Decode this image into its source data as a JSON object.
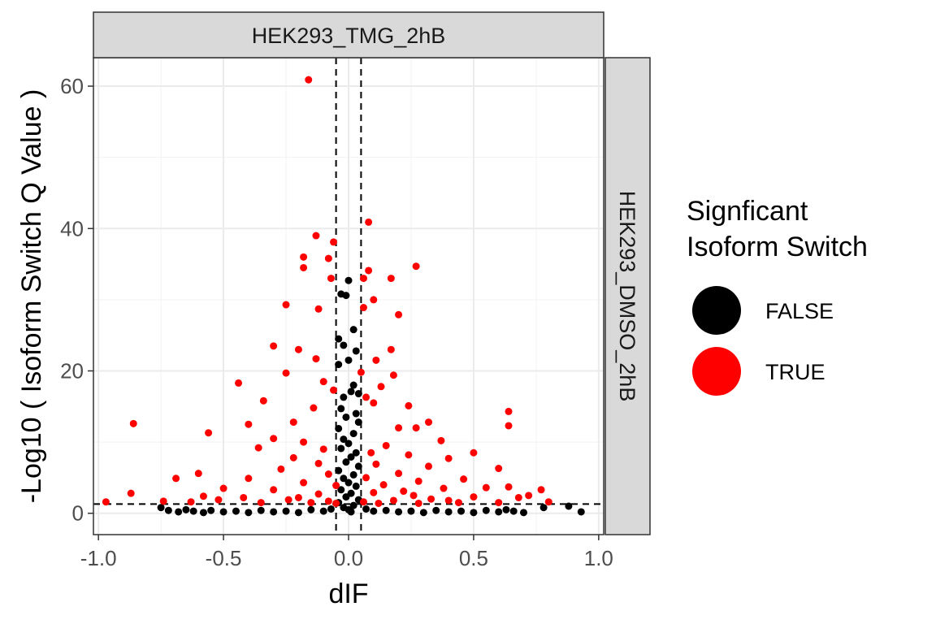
{
  "chart_data": {
    "type": "scatter",
    "xlabel": "dIF",
    "ylabel": "-Log10 ( Isoform Switch Q Value )",
    "xlim": [
      -1.02,
      1.02
    ],
    "ylim": [
      -3,
      64
    ],
    "x_ticks": [
      -1.0,
      -0.5,
      0.0,
      0.5,
      1.0
    ],
    "x_tick_labels": [
      "-1.0",
      "-0.5",
      "0.0",
      "0.5",
      "1.0"
    ],
    "y_ticks": [
      0,
      20,
      40,
      60
    ],
    "y_tick_labels": [
      "0",
      "20",
      "40",
      "60"
    ],
    "grid": true,
    "facet_col_label": "HEK293_TMG_2hB",
    "facet_row_label": "HEK293_DMSO_2hB",
    "reference_lines": {
      "vertical": [
        -0.05,
        0.05
      ],
      "horizontal": [
        1.3
      ]
    },
    "legend": {
      "title_lines": [
        "Signficant",
        "Isoform Switch"
      ],
      "position": "right",
      "entries": [
        {
          "label": "FALSE",
          "color": "#000000"
        },
        {
          "label": "TRUE",
          "color": "#ff0000"
        }
      ]
    },
    "series": [
      {
        "name": "FALSE",
        "color": "#000000",
        "points": [
          [
            0.0,
            32.7
          ],
          [
            -0.03,
            30.8
          ],
          [
            -0.01,
            30.6
          ],
          [
            0.02,
            25.8
          ],
          [
            -0.04,
            24.5
          ],
          [
            -0.02,
            23.6
          ],
          [
            0.03,
            22.8
          ],
          [
            0.0,
            21.5
          ],
          [
            -0.04,
            20.9
          ],
          [
            0.02,
            18.0
          ],
          [
            0.01,
            17.1
          ],
          [
            -0.02,
            16.3
          ],
          [
            0.04,
            16.8
          ],
          [
            -0.03,
            14.7
          ],
          [
            0.03,
            14.0
          ],
          [
            -0.01,
            13.5
          ],
          [
            0.04,
            12.8
          ],
          [
            -0.04,
            11.9
          ],
          [
            0.02,
            11.2
          ],
          [
            -0.02,
            10.4
          ],
          [
            0.0,
            9.8
          ],
          [
            -0.03,
            9.1
          ],
          [
            0.03,
            8.5
          ],
          [
            0.01,
            7.9
          ],
          [
            -0.01,
            7.2
          ],
          [
            0.04,
            6.6
          ],
          [
            -0.04,
            6.0
          ],
          [
            0.02,
            5.4
          ],
          [
            -0.02,
            4.9
          ],
          [
            0.0,
            4.3
          ],
          [
            0.03,
            3.8
          ],
          [
            -0.03,
            3.3
          ],
          [
            0.01,
            2.8
          ],
          [
            -0.01,
            2.3
          ],
          [
            0.04,
            1.9
          ],
          [
            -0.04,
            1.5
          ],
          [
            0.02,
            1.1
          ],
          [
            -0.02,
            0.8
          ],
          [
            0.0,
            0.5
          ],
          [
            0.01,
            0.2
          ],
          [
            -0.75,
            0.8
          ],
          [
            -0.72,
            0.4
          ],
          [
            -0.68,
            0.2
          ],
          [
            -0.65,
            0.5
          ],
          [
            -0.62,
            0.3
          ],
          [
            -0.58,
            0.1
          ],
          [
            -0.55,
            0.4
          ],
          [
            -0.5,
            0.2
          ],
          [
            -0.45,
            0.3
          ],
          [
            -0.4,
            0.1
          ],
          [
            -0.35,
            0.4
          ],
          [
            -0.3,
            0.2
          ],
          [
            -0.25,
            0.3
          ],
          [
            -0.2,
            0.1
          ],
          [
            -0.15,
            0.5
          ],
          [
            -0.1,
            0.3
          ],
          [
            -0.07,
            0.6
          ],
          [
            0.07,
            0.6
          ],
          [
            0.1,
            0.3
          ],
          [
            0.15,
            0.4
          ],
          [
            0.2,
            0.2
          ],
          [
            0.25,
            0.3
          ],
          [
            0.3,
            0.1
          ],
          [
            0.35,
            0.4
          ],
          [
            0.4,
            0.2
          ],
          [
            0.45,
            0.3
          ],
          [
            0.5,
            0.1
          ],
          [
            0.55,
            0.4
          ],
          [
            0.6,
            0.2
          ],
          [
            0.63,
            0.5
          ],
          [
            0.66,
            0.3
          ],
          [
            0.7,
            0.1
          ],
          [
            0.78,
            0.8
          ],
          [
            0.88,
            1.0
          ],
          [
            0.93,
            0.2
          ]
        ]
      },
      {
        "name": "TRUE",
        "color": "#ff0000",
        "points": [
          [
            -0.16,
            60.9
          ],
          [
            0.08,
            40.9
          ],
          [
            -0.13,
            39.0
          ],
          [
            -0.06,
            38.1
          ],
          [
            0.08,
            34.1
          ],
          [
            -0.18,
            36.0
          ],
          [
            -0.18,
            34.5
          ],
          [
            -0.08,
            35.8
          ],
          [
            0.27,
            34.7
          ],
          [
            0.06,
            33.0
          ],
          [
            -0.07,
            33.0
          ],
          [
            0.17,
            33.0
          ],
          [
            0.1,
            30.0
          ],
          [
            -0.25,
            29.3
          ],
          [
            0.06,
            28.9
          ],
          [
            -0.12,
            28.7
          ],
          [
            0.2,
            27.9
          ],
          [
            -0.3,
            23.5
          ],
          [
            0.17,
            23.0
          ],
          [
            -0.2,
            23.0
          ],
          [
            0.11,
            21.5
          ],
          [
            -0.13,
            21.7
          ],
          [
            -0.44,
            18.3
          ],
          [
            -0.25,
            19.7
          ],
          [
            0.18,
            19.4
          ],
          [
            0.05,
            19.8
          ],
          [
            -0.1,
            18.5
          ],
          [
            0.13,
            17.8
          ],
          [
            -0.06,
            17.3
          ],
          [
            0.07,
            16.3
          ],
          [
            -0.34,
            15.8
          ],
          [
            0.24,
            15.1
          ],
          [
            0.1,
            15.5
          ],
          [
            -0.14,
            14.8
          ],
          [
            0.64,
            14.3
          ],
          [
            -0.86,
            12.6
          ],
          [
            -0.4,
            12.5
          ],
          [
            0.64,
            12.3
          ],
          [
            0.32,
            12.8
          ],
          [
            -0.22,
            12.8
          ],
          [
            0.2,
            12.0
          ],
          [
            -0.56,
            11.3
          ],
          [
            0.27,
            12.0
          ],
          [
            -0.3,
            10.5
          ],
          [
            0.37,
            10.2
          ],
          [
            -0.18,
            10.0
          ],
          [
            0.15,
            9.5
          ],
          [
            -0.1,
            9.0
          ],
          [
            0.09,
            8.5
          ],
          [
            -0.36,
            9.2
          ],
          [
            0.5,
            8.5
          ],
          [
            0.24,
            8.2
          ],
          [
            -0.22,
            7.8
          ],
          [
            0.4,
            7.7
          ],
          [
            -0.12,
            7.0
          ],
          [
            0.11,
            6.9
          ],
          [
            0.6,
            6.3
          ],
          [
            0.32,
            6.6
          ],
          [
            -0.27,
            6.2
          ],
          [
            -0.6,
            5.6
          ],
          [
            0.2,
            5.6
          ],
          [
            -0.08,
            5.5
          ],
          [
            0.07,
            5.0
          ],
          [
            -0.69,
            4.9
          ],
          [
            0.46,
            4.8
          ],
          [
            -0.4,
            4.9
          ],
          [
            0.28,
            4.5
          ],
          [
            -0.18,
            4.3
          ],
          [
            0.14,
            4.0
          ],
          [
            -0.05,
            3.9
          ],
          [
            0.55,
            3.6
          ],
          [
            -0.5,
            3.5
          ],
          [
            0.38,
            3.5
          ],
          [
            0.64,
            3.7
          ],
          [
            -0.3,
            3.3
          ],
          [
            0.22,
            3.1
          ],
          [
            0.1,
            2.9
          ],
          [
            -0.12,
            2.7
          ],
          [
            -0.87,
            2.8
          ],
          [
            0.72,
            2.5
          ],
          [
            -0.58,
            2.4
          ],
          [
            0.5,
            2.3
          ],
          [
            -0.42,
            2.2
          ],
          [
            0.33,
            2.0
          ],
          [
            0.77,
            3.3
          ],
          [
            -0.24,
            1.9
          ],
          [
            0.18,
            1.8
          ],
          [
            -0.08,
            1.7
          ],
          [
            0.06,
            1.6
          ],
          [
            -0.97,
            1.6
          ],
          [
            0.8,
            1.6
          ],
          [
            -0.74,
            1.7
          ],
          [
            0.6,
            1.5
          ],
          [
            -0.63,
            1.6
          ],
          [
            0.44,
            1.5
          ],
          [
            -0.35,
            1.5
          ],
          [
            0.28,
            1.4
          ],
          [
            -0.15,
            1.5
          ],
          [
            0.12,
            1.4
          ],
          [
            -0.05,
            1.4
          ],
          [
            0.68,
            2.2
          ],
          [
            -0.52,
            1.9
          ],
          [
            0.4,
            1.8
          ],
          [
            -0.2,
            2.2
          ],
          [
            0.26,
            2.5
          ]
        ]
      }
    ]
  }
}
